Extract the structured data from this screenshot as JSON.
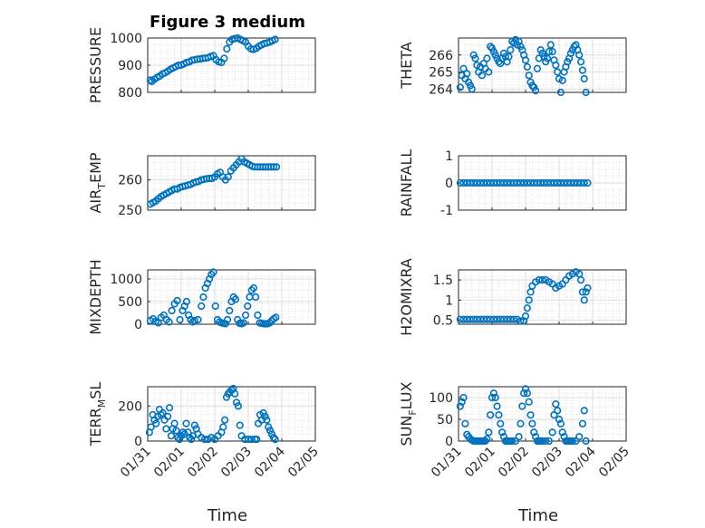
{
  "title": "Figure 3 medium",
  "marker_color": "#0072BD",
  "x_tick_labels": [
    "01/31",
    "02/01",
    "02/02",
    "02/03",
    "02/04",
    "02/05"
  ],
  "x_axis_label": "Time",
  "chart_data": [
    {
      "type": "scatter",
      "ylabel_main": "PRESSURE",
      "ylabel_sub": "",
      "ylabel_rest": "",
      "ylim": [
        800,
        1000
      ],
      "yticks": [
        800,
        900,
        1000
      ],
      "xlim": [
        0,
        5
      ],
      "x": [
        0.08,
        0.12,
        0.2,
        0.28,
        0.36,
        0.44,
        0.52,
        0.6,
        0.68,
        0.76,
        0.84,
        0.92,
        1.0,
        1.08,
        1.16,
        1.24,
        1.32,
        1.4,
        1.48,
        1.56,
        1.64,
        1.72,
        1.8,
        1.88,
        1.96,
        2.04,
        2.12,
        2.2,
        2.28,
        2.36,
        2.44,
        2.52,
        2.6,
        2.68,
        2.76,
        2.84,
        2.92,
        3.0,
        3.08,
        3.16,
        3.24,
        3.32,
        3.4,
        3.48,
        3.56,
        3.64,
        3.72,
        3.8
      ],
      "y": [
        845,
        840,
        848,
        855,
        860,
        868,
        872,
        878,
        885,
        890,
        895,
        900,
        900,
        905,
        910,
        912,
        918,
        920,
        922,
        923,
        925,
        926,
        928,
        932,
        935,
        920,
        912,
        910,
        925,
        960,
        985,
        995,
        998,
        1000,
        995,
        990,
        985,
        970,
        960,
        958,
        962,
        970,
        975,
        980,
        982,
        985,
        990,
        995
      ]
    },
    {
      "type": "scatter",
      "ylabel_main": "THETA",
      "ylabel_sub": "",
      "ylabel_rest": "",
      "ylim": [
        263.8,
        267
      ],
      "yticks": [
        264,
        265,
        266
      ],
      "xlim": [
        0,
        5
      ],
      "x": [
        0.05,
        0.1,
        0.15,
        0.2,
        0.25,
        0.3,
        0.35,
        0.4,
        0.45,
        0.5,
        0.55,
        0.6,
        0.65,
        0.7,
        0.75,
        0.8,
        0.85,
        0.9,
        0.95,
        1.0,
        1.05,
        1.1,
        1.15,
        1.2,
        1.25,
        1.3,
        1.35,
        1.4,
        1.45,
        1.5,
        1.55,
        1.6,
        1.65,
        1.7,
        1.75,
        1.8,
        1.85,
        1.9,
        1.95,
        2.0,
        2.05,
        2.1,
        2.15,
        2.2,
        2.25,
        2.3,
        2.35,
        2.4,
        2.45,
        2.5,
        2.55,
        2.6,
        2.65,
        2.7,
        2.75,
        2.8,
        2.85,
        2.9,
        2.95,
        3.0,
        3.05,
        3.1,
        3.15,
        3.2,
        3.25,
        3.3,
        3.35,
        3.4,
        3.45,
        3.5,
        3.55,
        3.6,
        3.65,
        3.7,
        3.75,
        3.8
      ],
      "y": [
        264.1,
        264.8,
        265.2,
        264.6,
        264.9,
        264.4,
        264.2,
        264,
        266,
        265.8,
        265.4,
        265,
        265.3,
        264.8,
        265.5,
        265.2,
        265.8,
        265,
        266.5,
        266.4,
        266.2,
        266,
        265.8,
        265.6,
        265.5,
        265.8,
        266.1,
        265.9,
        265.6,
        265.9,
        266.3,
        266.8,
        266.7,
        266.9,
        266.6,
        266.8,
        266.5,
        266.3,
        266,
        265.7,
        265.3,
        264.8,
        264.4,
        264.2,
        264.1,
        263.9,
        265.2,
        265.8,
        266.3,
        266.1,
        265.9,
        265.6,
        265.8,
        266.2,
        266.6,
        266.2,
        265.7,
        265.4,
        265,
        264.6,
        263.8,
        264.5,
        265,
        265.3,
        265.6,
        265.8,
        266.1,
        266.3,
        266.5,
        266.6,
        266.3,
        266,
        265.6,
        265.1,
        264.6,
        263.8
      ]
    },
    {
      "type": "scatter",
      "ylabel_main": "AIR",
      "ylabel_sub": "T",
      "ylabel_rest": "EMP",
      "ylim": [
        250,
        268
      ],
      "yticks": [
        250,
        260
      ],
      "xlim": [
        0,
        5
      ],
      "x": [
        0.08,
        0.16,
        0.24,
        0.32,
        0.4,
        0.48,
        0.56,
        0.64,
        0.72,
        0.8,
        0.88,
        0.96,
        1.04,
        1.12,
        1.2,
        1.28,
        1.36,
        1.44,
        1.52,
        1.6,
        1.68,
        1.76,
        1.84,
        1.92,
        2.0,
        2.08,
        2.16,
        2.24,
        2.32,
        2.4,
        2.48,
        2.56,
        2.64,
        2.72,
        2.8,
        2.88,
        2.96,
        3.04,
        3.12,
        3.2,
        3.28,
        3.36,
        3.44,
        3.52,
        3.6,
        3.68,
        3.76,
        3.84
      ],
      "y": [
        252,
        252.5,
        253,
        253.8,
        254.5,
        255,
        255.5,
        256,
        256.5,
        257,
        257,
        257.5,
        257.8,
        258,
        258.3,
        258.5,
        259,
        259.3,
        259.5,
        260,
        260.2,
        260.4,
        260.5,
        260.5,
        261,
        262,
        262.5,
        261,
        260,
        261,
        263,
        264,
        265,
        266,
        267,
        266,
        265.5,
        265,
        264.5,
        264.3,
        264.3,
        264.3,
        264.3,
        264.3,
        264.3,
        264.3,
        264.3,
        264.3
      ]
    },
    {
      "type": "scatter",
      "ylabel_main": "RAINFALL",
      "ylabel_sub": "",
      "ylabel_rest": "",
      "ylim": [
        -1,
        1
      ],
      "yticks": [
        -1,
        0,
        1
      ],
      "xlim": [
        0,
        5
      ],
      "x": [
        0.05,
        0.15,
        0.25,
        0.35,
        0.45,
        0.55,
        0.65,
        0.75,
        0.85,
        0.95,
        1.05,
        1.15,
        1.25,
        1.35,
        1.45,
        1.55,
        1.65,
        1.75,
        1.85,
        1.95,
        2.05,
        2.15,
        2.25,
        2.35,
        2.45,
        2.55,
        2.65,
        2.75,
        2.85,
        2.95,
        3.05,
        3.15,
        3.25,
        3.35,
        3.45,
        3.55,
        3.65,
        3.75,
        3.85
      ],
      "y": [
        0,
        0,
        0,
        0,
        0,
        0,
        0,
        0,
        0,
        0,
        0,
        0,
        0,
        0,
        0,
        0,
        0,
        0,
        0,
        0,
        0,
        0,
        0,
        0,
        0,
        0,
        0,
        0,
        0,
        0,
        0,
        0,
        0,
        0,
        0,
        0,
        0,
        0,
        0
      ]
    },
    {
      "type": "scatter",
      "ylabel_main": "MIXDEPTH",
      "ylabel_sub": "",
      "ylabel_rest": "",
      "ylim": [
        0,
        1200
      ],
      "yticks": [
        0,
        500,
        1000
      ],
      "xlim": [
        0,
        5
      ],
      "x": [
        0.08,
        0.16,
        0.24,
        0.32,
        0.4,
        0.48,
        0.56,
        0.64,
        0.72,
        0.8,
        0.88,
        0.96,
        1.04,
        1.1,
        1.16,
        1.22,
        1.28,
        1.34,
        1.4,
        1.5,
        1.6,
        1.66,
        1.72,
        1.78,
        1.84,
        1.9,
        1.96,
        2.02,
        2.08,
        2.14,
        2.2,
        2.26,
        2.32,
        2.38,
        2.44,
        2.5,
        2.56,
        2.62,
        2.68,
        2.74,
        2.8,
        2.86,
        2.92,
        2.98,
        3.04,
        3.1,
        3.16,
        3.22,
        3.28,
        3.34,
        3.4,
        3.46,
        3.52,
        3.58,
        3.64,
        3.7,
        3.76,
        3.82
      ],
      "y": [
        80,
        120,
        60,
        30,
        150,
        200,
        100,
        50,
        300,
        450,
        520,
        100,
        300,
        400,
        500,
        200,
        100,
        50,
        80,
        100,
        400,
        600,
        800,
        900,
        1000,
        1100,
        1150,
        400,
        100,
        50,
        30,
        20,
        10,
        100,
        300,
        500,
        600,
        550,
        100,
        20,
        10,
        30,
        200,
        400,
        600,
        750,
        800,
        600,
        200,
        30,
        20,
        10,
        10,
        10,
        30,
        80,
        120,
        150
      ]
    },
    {
      "type": "scatter",
      "ylabel_main": "H2OMIXRA",
      "ylabel_sub": "",
      "ylabel_rest": "",
      "ylim": [
        0.4,
        1.75
      ],
      "yticks": [
        0.5,
        1,
        1.5
      ],
      "xlim": [
        0,
        5
      ],
      "x": [
        0.05,
        0.15,
        0.25,
        0.35,
        0.45,
        0.55,
        0.65,
        0.75,
        0.85,
        0.95,
        1.05,
        1.15,
        1.25,
        1.35,
        1.45,
        1.55,
        1.65,
        1.75,
        1.85,
        1.95,
        2.0,
        2.05,
        2.1,
        2.15,
        2.2,
        2.3,
        2.4,
        2.5,
        2.6,
        2.7,
        2.8,
        2.9,
        3.0,
        3.1,
        3.2,
        3.3,
        3.4,
        3.5,
        3.6,
        3.65,
        3.7,
        3.75,
        3.8,
        3.85
      ],
      "y": [
        0.52,
        0.52,
        0.52,
        0.52,
        0.52,
        0.52,
        0.52,
        0.52,
        0.52,
        0.52,
        0.52,
        0.52,
        0.52,
        0.52,
        0.52,
        0.52,
        0.52,
        0.52,
        0.48,
        0.48,
        0.6,
        0.8,
        1.0,
        1.2,
        1.35,
        1.45,
        1.5,
        1.5,
        1.5,
        1.45,
        1.4,
        1.3,
        1.35,
        1.4,
        1.5,
        1.6,
        1.65,
        1.7,
        1.65,
        1.5,
        1.2,
        1.0,
        1.2,
        1.3
      ]
    },
    {
      "type": "scatter",
      "ylabel_main": "TERR",
      "ylabel_sub": "M",
      "ylabel_rest": "SL",
      "ylim": [
        0,
        310
      ],
      "yticks": [
        0,
        200
      ],
      "xlim": [
        0,
        5
      ],
      "x": [
        0.05,
        0.1,
        0.15,
        0.2,
        0.25,
        0.3,
        0.35,
        0.4,
        0.45,
        0.5,
        0.55,
        0.6,
        0.65,
        0.7,
        0.75,
        0.8,
        0.85,
        0.9,
        0.95,
        1.0,
        1.05,
        1.1,
        1.15,
        1.2,
        1.25,
        1.3,
        1.35,
        1.4,
        1.45,
        1.5,
        1.6,
        1.7,
        1.8,
        1.9,
        2.0,
        2.1,
        2.2,
        2.25,
        2.3,
        2.35,
        2.4,
        2.45,
        2.5,
        2.55,
        2.6,
        2.65,
        2.7,
        2.75,
        2.8,
        2.9,
        3.0,
        3.1,
        3.2,
        3.25,
        3.3,
        3.35,
        3.4,
        3.45,
        3.5,
        3.55,
        3.6,
        3.65,
        3.7,
        3.75,
        3.8
      ],
      "y": [
        50,
        80,
        150,
        120,
        100,
        140,
        180,
        150,
        160,
        120,
        70,
        140,
        190,
        30,
        70,
        100,
        60,
        20,
        10,
        30,
        50,
        40,
        100,
        50,
        20,
        10,
        30,
        90,
        70,
        40,
        20,
        10,
        10,
        20,
        10,
        30,
        50,
        80,
        120,
        250,
        270,
        280,
        290,
        300,
        270,
        220,
        200,
        90,
        30,
        10,
        10,
        10,
        10,
        10,
        100,
        150,
        120,
        160,
        140,
        120,
        80,
        60,
        40,
        20,
        10
      ]
    },
    {
      "type": "scatter",
      "ylabel_main": "SUN",
      "ylabel_sub": "F",
      "ylabel_rest": "LUX",
      "ylim": [
        0,
        125
      ],
      "yticks": [
        0,
        50,
        100
      ],
      "xlim": [
        0,
        5
      ],
      "x": [
        0.05,
        0.1,
        0.15,
        0.2,
        0.25,
        0.3,
        0.35,
        0.4,
        0.45,
        0.5,
        0.55,
        0.6,
        0.65,
        0.7,
        0.75,
        0.8,
        0.85,
        0.9,
        0.95,
        1.0,
        1.05,
        1.1,
        1.15,
        1.2,
        1.25,
        1.3,
        1.35,
        1.4,
        1.45,
        1.5,
        1.55,
        1.6,
        1.7,
        1.8,
        1.85,
        1.9,
        1.95,
        2.0,
        2.05,
        2.1,
        2.15,
        2.2,
        2.25,
        2.3,
        2.35,
        2.4,
        2.45,
        2.5,
        2.6,
        2.7,
        2.8,
        2.85,
        2.9,
        2.95,
        3.0,
        3.05,
        3.1,
        3.15,
        3.2,
        3.25,
        3.3,
        3.35,
        3.4,
        3.5,
        3.6,
        3.7,
        3.75,
        3.8
      ],
      "y": [
        80,
        90,
        100,
        40,
        15,
        10,
        5,
        2,
        0,
        0,
        0,
        0,
        0,
        0,
        0,
        0,
        5,
        20,
        60,
        100,
        110,
        100,
        80,
        60,
        40,
        20,
        10,
        0,
        0,
        0,
        0,
        0,
        0,
        10,
        40,
        80,
        110,
        120,
        110,
        90,
        60,
        40,
        20,
        10,
        0,
        0,
        0,
        0,
        0,
        0,
        20,
        60,
        85,
        70,
        50,
        40,
        20,
        10,
        0,
        0,
        0,
        0,
        0,
        0,
        10,
        40,
        70,
        0
      ]
    }
  ]
}
